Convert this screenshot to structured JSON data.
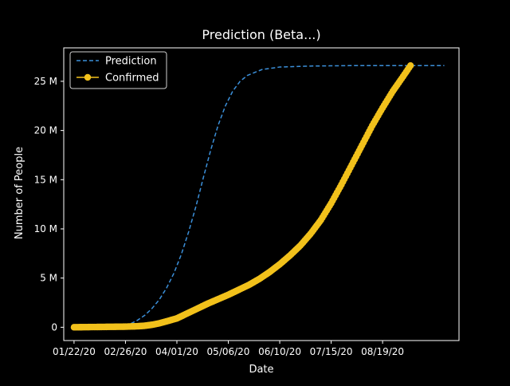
{
  "chart_data": {
    "type": "line",
    "title": "Prediction (Beta...)",
    "xlabel": "Date",
    "ylabel": "Number of People",
    "x_ticks": [
      "01/22/20",
      "02/26/20",
      "04/01/20",
      "05/06/20",
      "06/10/20",
      "07/15/20",
      "08/19/20"
    ],
    "y_ticks": [
      {
        "value": 0,
        "label": "0"
      },
      {
        "value": 5000000,
        "label": "5 M"
      },
      {
        "value": 10000000,
        "label": "10 M"
      },
      {
        "value": 15000000,
        "label": "15 M"
      },
      {
        "value": 20000000,
        "label": "20 M"
      },
      {
        "value": 25000000,
        "label": "25 M"
      }
    ],
    "xlim": [
      "2020-01-15",
      "2020-10-10"
    ],
    "ylim": [
      -1350000,
      28400000
    ],
    "legend_position": "upper-left",
    "grid": false,
    "series": [
      {
        "name": "Prediction",
        "style": "dashed",
        "color": "#3b8fd9",
        "points": [
          [
            "2020-01-22",
            0
          ],
          [
            "2020-02-26",
            150000
          ],
          [
            "2020-03-01",
            400000
          ],
          [
            "2020-03-05",
            700000
          ],
          [
            "2020-03-10",
            1200000
          ],
          [
            "2020-03-15",
            1900000
          ],
          [
            "2020-03-20",
            2800000
          ],
          [
            "2020-03-25",
            4000000
          ],
          [
            "2020-03-30",
            5500000
          ],
          [
            "2020-04-04",
            7400000
          ],
          [
            "2020-04-09",
            9700000
          ],
          [
            "2020-04-14",
            12300000
          ],
          [
            "2020-04-19",
            15200000
          ],
          [
            "2020-04-24",
            18000000
          ],
          [
            "2020-04-29",
            20500000
          ],
          [
            "2020-05-04",
            22500000
          ],
          [
            "2020-05-09",
            24000000
          ],
          [
            "2020-05-14",
            25000000
          ],
          [
            "2020-05-19",
            25600000
          ],
          [
            "2020-05-29",
            26200000
          ],
          [
            "2020-06-10",
            26450000
          ],
          [
            "2020-07-01",
            26550000
          ],
          [
            "2020-08-01",
            26600000
          ],
          [
            "2020-09-30",
            26600000
          ]
        ]
      },
      {
        "name": "Confirmed",
        "style": "solid-marker",
        "color": "#f2c11b",
        "points": [
          [
            "2020-01-22",
            0
          ],
          [
            "2020-02-26",
            60000
          ],
          [
            "2020-03-05",
            100000
          ],
          [
            "2020-03-10",
            150000
          ],
          [
            "2020-03-15",
            250000
          ],
          [
            "2020-03-20",
            400000
          ],
          [
            "2020-03-25",
            600000
          ],
          [
            "2020-04-01",
            900000
          ],
          [
            "2020-04-08",
            1400000
          ],
          [
            "2020-04-15",
            1900000
          ],
          [
            "2020-04-22",
            2400000
          ],
          [
            "2020-04-29",
            2850000
          ],
          [
            "2020-05-06",
            3300000
          ],
          [
            "2020-05-13",
            3800000
          ],
          [
            "2020-05-20",
            4300000
          ],
          [
            "2020-05-27",
            4900000
          ],
          [
            "2020-06-03",
            5600000
          ],
          [
            "2020-06-10",
            6400000
          ],
          [
            "2020-06-17",
            7300000
          ],
          [
            "2020-06-24",
            8300000
          ],
          [
            "2020-07-01",
            9500000
          ],
          [
            "2020-07-08",
            10900000
          ],
          [
            "2020-07-15",
            12600000
          ],
          [
            "2020-07-22",
            14500000
          ],
          [
            "2020-07-29",
            16500000
          ],
          [
            "2020-08-05",
            18500000
          ],
          [
            "2020-08-12",
            20500000
          ],
          [
            "2020-08-19",
            22300000
          ],
          [
            "2020-08-26",
            24000000
          ],
          [
            "2020-09-02",
            25500000
          ],
          [
            "2020-09-07",
            26600000
          ]
        ]
      }
    ]
  }
}
